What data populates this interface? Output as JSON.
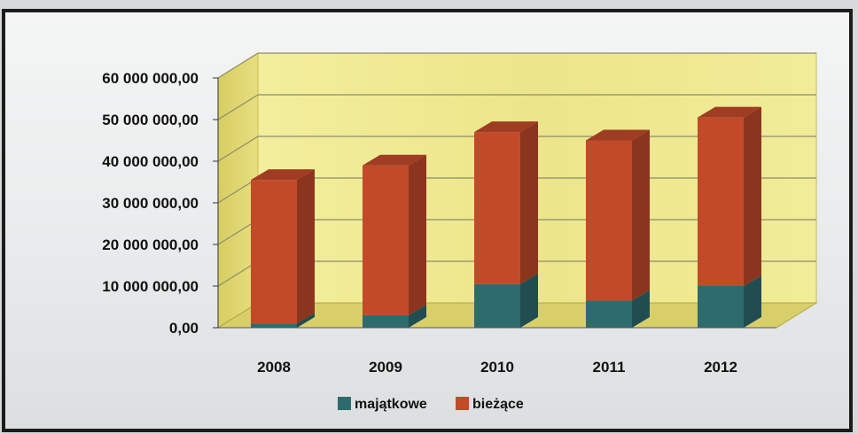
{
  "chart_data": {
    "type": "bar",
    "stacked": true,
    "categories": [
      "2008",
      "2009",
      "2010",
      "2011",
      "2012"
    ],
    "series": [
      {
        "name": "majątkowe",
        "color": "#2e6b6f",
        "values": [
          1000000,
          3000000,
          10500000,
          6500000,
          10000000
        ]
      },
      {
        "name": "bieżące",
        "color": "#c24a29",
        "values": [
          34500000,
          36000000,
          36500000,
          38500000,
          40500000
        ]
      }
    ],
    "y_ticks": [
      "0,00",
      "10 000 000,00",
      "20 000 000,00",
      "30 000 000,00",
      "40 000 000,00",
      "50 000 000,00",
      "60 000 000,00"
    ],
    "ylim": [
      0,
      60000000
    ],
    "grid": true,
    "legend_position": "bottom",
    "wall_color": "#f0ea90",
    "floor_color": "#d8cf6a"
  }
}
